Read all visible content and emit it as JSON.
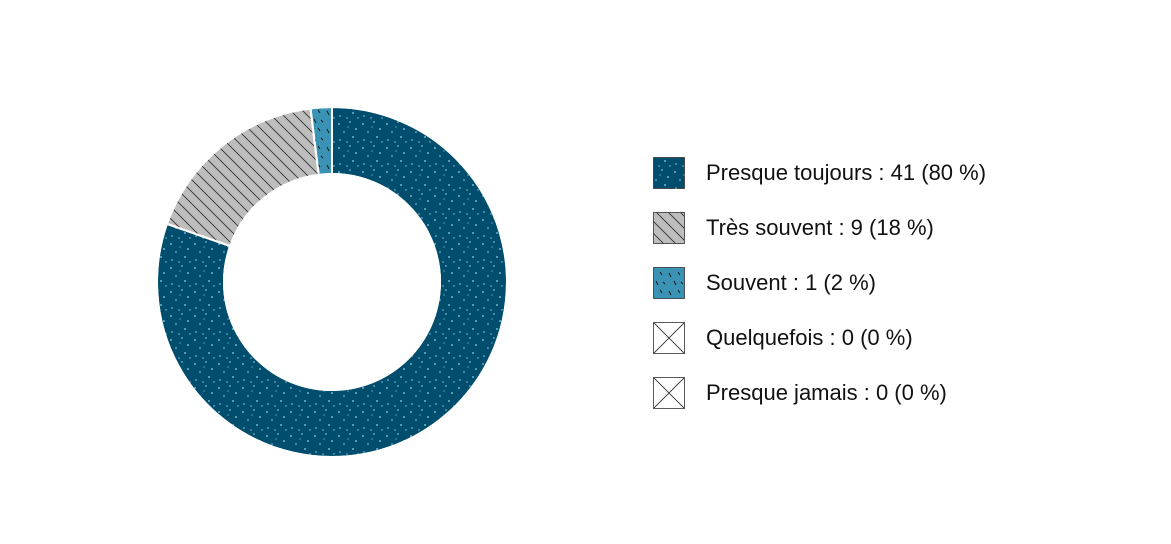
{
  "chart_data": {
    "type": "donut",
    "categories": [
      "Presque toujours : 41 (80 %)",
      "Très souvent : 9 (18 %)",
      "Souvent : 1 (2 %)",
      "Quelquefois : 0 (0 %)",
      "Presque jamais : 0 (0 %)"
    ],
    "values": [
      41,
      9,
      1,
      0,
      0
    ],
    "colors": [
      "#004d6e",
      "#bdbdbd",
      "#3a93b5",
      "#ffffff",
      "#ffffff"
    ],
    "legend": "right"
  }
}
